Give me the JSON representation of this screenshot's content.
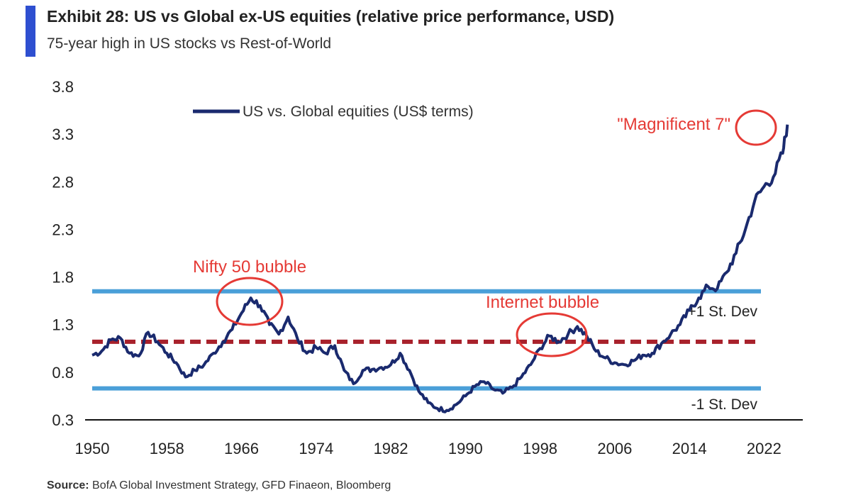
{
  "header": {
    "title": "Exhibit 28: US vs Global ex-US equities (relative price performance, USD)",
    "subtitle": "75-year high in US stocks vs Rest-of-World",
    "accent_color": "#2e4fd0"
  },
  "source": {
    "label": "Source:",
    "text": "BofA Global Investment Strategy, GFD Finaeon, Bloomberg"
  },
  "chart_data": {
    "type": "line",
    "title": "Exhibit 28: US vs Global ex-US equities (relative price performance, USD)",
    "subtitle": "75-year high in US stocks vs Rest-of-World",
    "xlabel": "",
    "ylabel": "",
    "xlim": [
      1950,
      2026
    ],
    "ylim": [
      0.3,
      3.8
    ],
    "x_ticks": [
      "1950",
      "1958",
      "1966",
      "1974",
      "1982",
      "1990",
      "1998",
      "2006",
      "2014",
      "2022"
    ],
    "y_ticks": [
      "3.8",
      "3.3",
      "2.8",
      "2.3",
      "1.8",
      "1.3",
      "0.8",
      "0.3"
    ],
    "legend": {
      "label": "US vs. Global equities (US$ terms)",
      "position": "top-left"
    },
    "series": [
      {
        "name": "US vs. Global equities (US$ terms)",
        "color": "#1a2a6e",
        "x": [
          1950,
          1951,
          1952,
          1953,
          1954,
          1955,
          1956,
          1957,
          1958,
          1959,
          1960,
          1961,
          1962,
          1963,
          1964,
          1965,
          1966,
          1967,
          1968,
          1969,
          1970,
          1971,
          1972,
          1973,
          1974,
          1975,
          1976,
          1977,
          1978,
          1979,
          1980,
          1981,
          1982,
          1983,
          1984,
          1985,
          1986,
          1987,
          1988,
          1989,
          1990,
          1991,
          1992,
          1993,
          1994,
          1995,
          1996,
          1997,
          1998,
          1999,
          2000,
          2001,
          2002,
          2003,
          2004,
          2005,
          2006,
          2007,
          2008,
          2009,
          2010,
          2011,
          2012,
          2013,
          2014,
          2015,
          2016,
          2017,
          2018,
          2019,
          2020,
          2021,
          2022,
          2023,
          2024,
          2024.5
        ],
        "y": [
          0.98,
          1.02,
          1.14,
          1.16,
          1.0,
          0.97,
          1.22,
          1.12,
          1.0,
          0.9,
          0.75,
          0.82,
          0.88,
          1.0,
          1.12,
          1.25,
          1.42,
          1.58,
          1.5,
          1.3,
          1.2,
          1.38,
          1.15,
          1.0,
          1.06,
          1.0,
          1.08,
          0.82,
          0.68,
          0.82,
          0.83,
          0.85,
          0.88,
          1.0,
          0.82,
          0.6,
          0.48,
          0.42,
          0.4,
          0.46,
          0.55,
          0.65,
          0.7,
          0.62,
          0.58,
          0.64,
          0.75,
          0.88,
          1.05,
          1.18,
          1.12,
          1.2,
          1.28,
          1.18,
          1.02,
          0.95,
          0.9,
          0.88,
          0.92,
          0.98,
          1.0,
          1.1,
          1.2,
          1.3,
          1.45,
          1.58,
          1.7,
          1.68,
          1.85,
          2.05,
          2.3,
          2.6,
          2.75,
          2.85,
          3.1,
          3.4
        ]
      }
    ],
    "reference_lines": [
      {
        "name": "+1 St. Dev",
        "value": 1.65,
        "color": "#4a9fd8",
        "style": "solid"
      },
      {
        "name": "mean",
        "value": 1.12,
        "color": "#a8212b",
        "style": "dashed"
      },
      {
        "name": "-1 St. Dev",
        "value": 0.63,
        "color": "#4a9fd8",
        "style": "solid"
      }
    ],
    "band_labels": [
      "+1 St. Dev",
      "-1 St. Dev"
    ],
    "annotations": [
      {
        "text": "Nifty 50 bubble",
        "x": 1967.5,
        "y": 1.53,
        "color": "#e53a35"
      },
      {
        "text": "Internet bubble",
        "x": 2001,
        "y": 1.2,
        "color": "#e53a35"
      },
      {
        "text": "\"Magnificent 7\"",
        "x": 2024.6,
        "y": 3.3,
        "color": "#e53a35"
      }
    ]
  }
}
